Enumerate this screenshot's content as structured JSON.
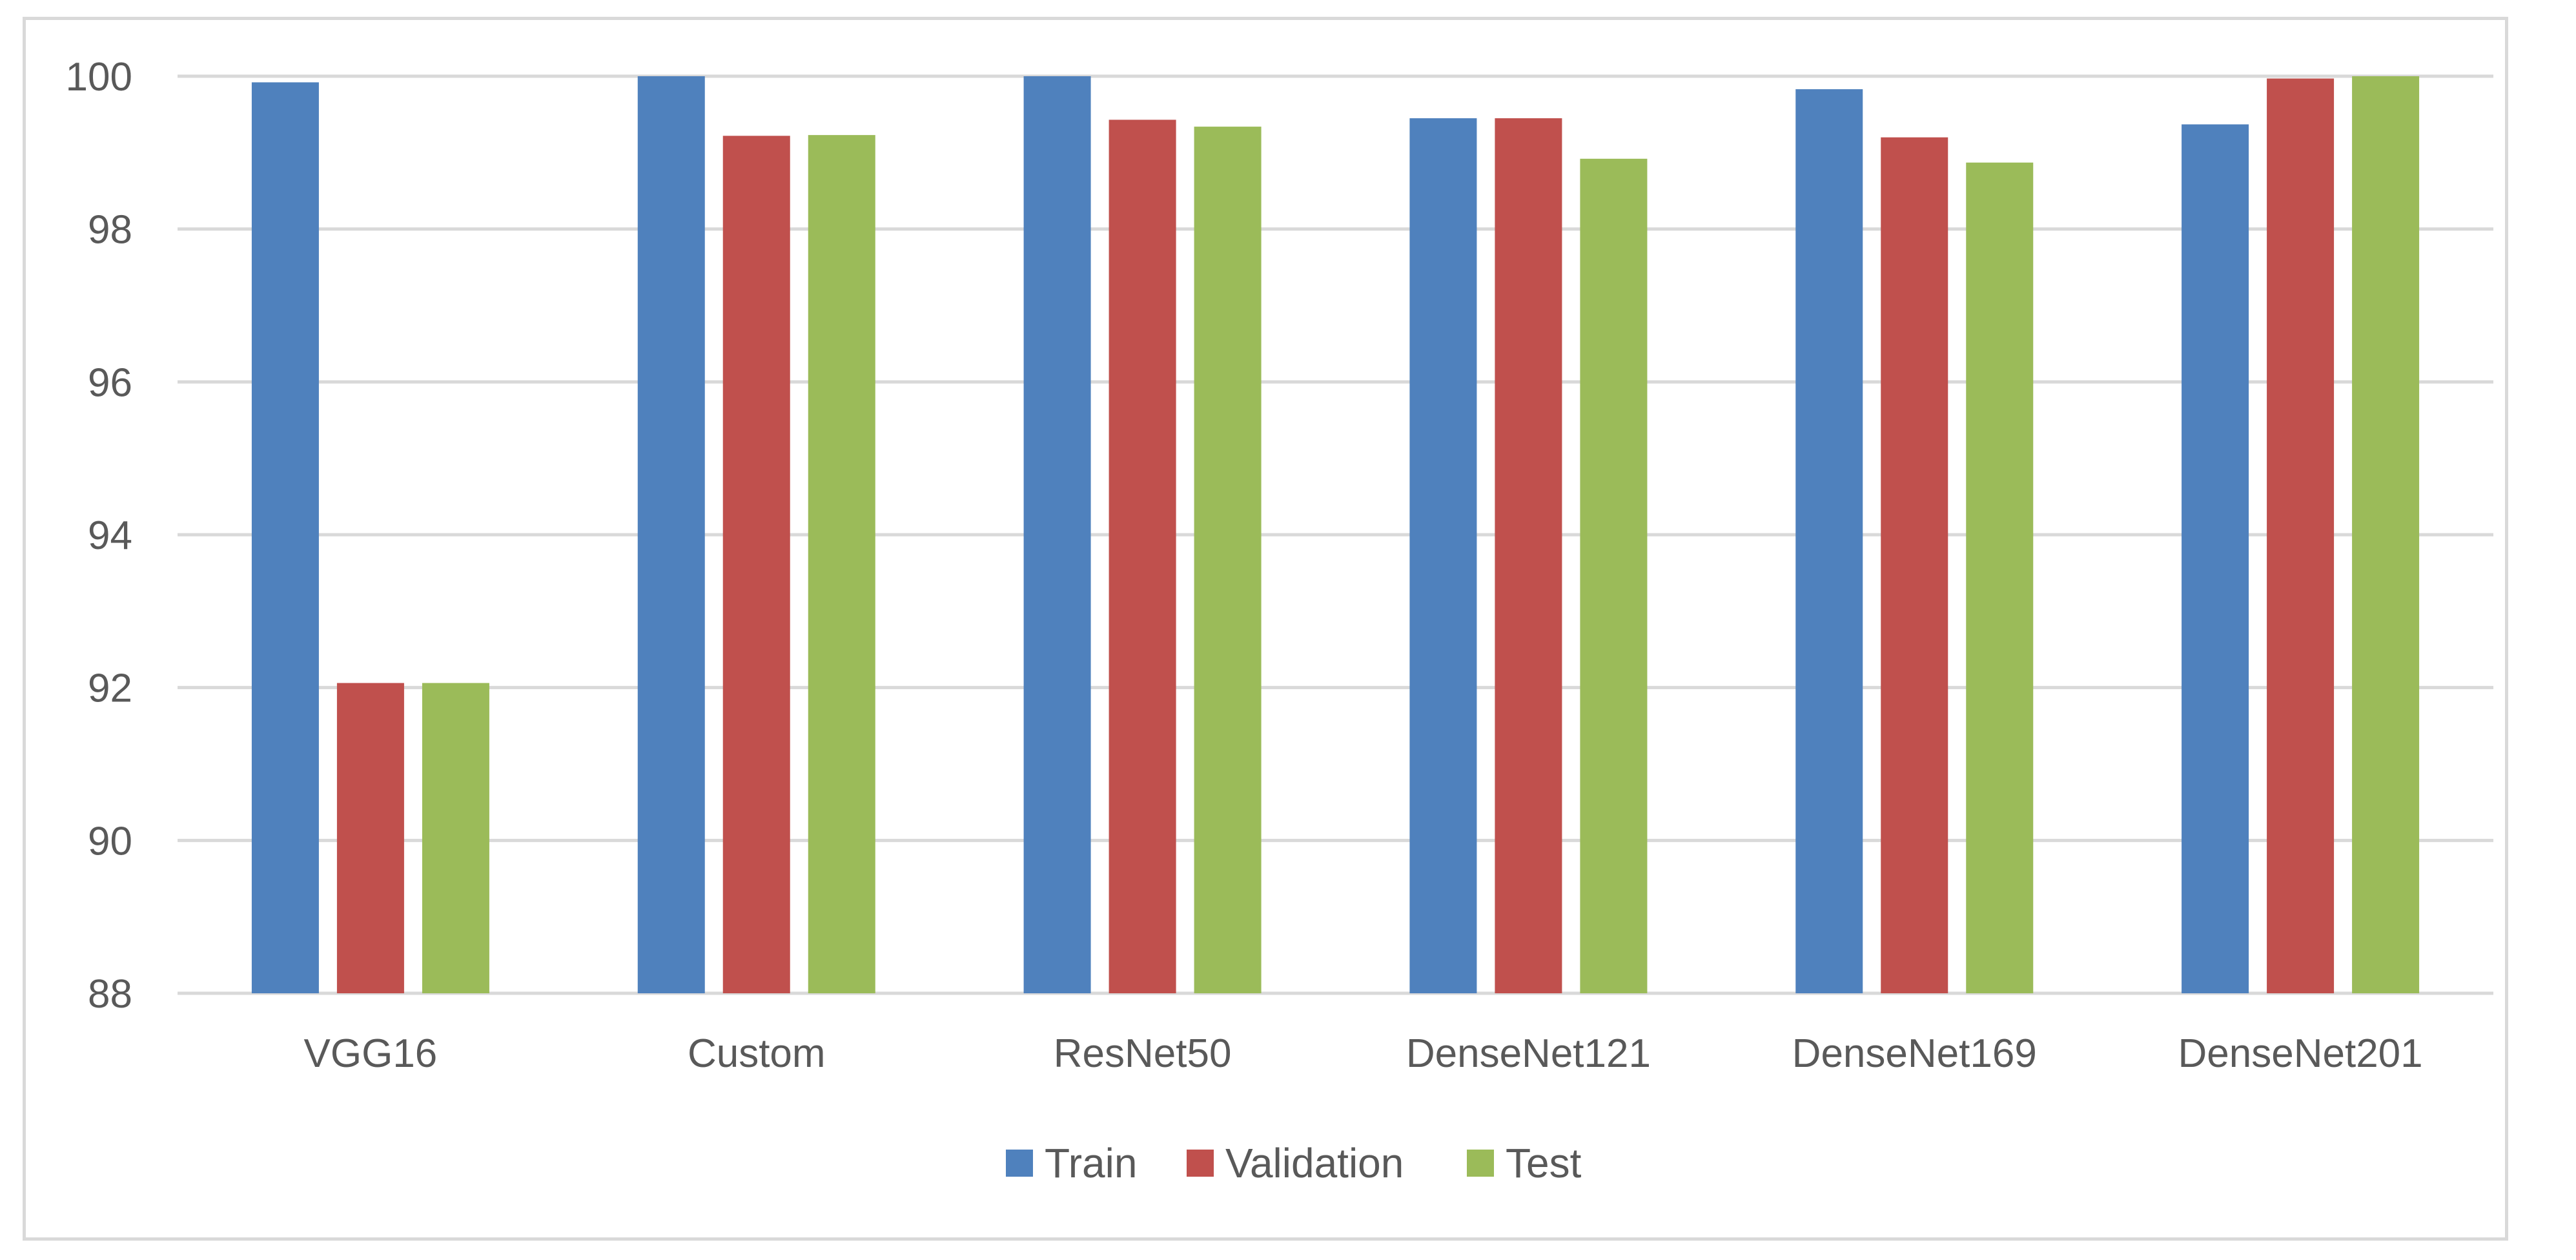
{
  "chart_data": {
    "type": "bar",
    "title": "",
    "xlabel": "",
    "ylabel": "",
    "categories": [
      "VGG16",
      "Custom",
      "ResNet50",
      "DenseNet121",
      "DenseNet169",
      "DenseNet201"
    ],
    "series": [
      {
        "name": "Train",
        "color": "#4f81bd",
        "values": [
          99.92,
          100.0,
          100.0,
          99.45,
          99.83,
          99.37
        ]
      },
      {
        "name": "Validation",
        "color": "#c0504d",
        "values": [
          92.06,
          99.22,
          99.43,
          99.45,
          99.2,
          99.97
        ]
      },
      {
        "name": "Test",
        "color": "#9bbb59",
        "values": [
          92.06,
          99.23,
          99.34,
          98.92,
          98.87,
          100.0
        ]
      }
    ],
    "ylim": [
      88,
      100
    ],
    "yticks": [
      88,
      90,
      92,
      94,
      96,
      98,
      100
    ],
    "grid": true,
    "gridline_color": "#d9d9d9",
    "legend_position": "bottom"
  }
}
